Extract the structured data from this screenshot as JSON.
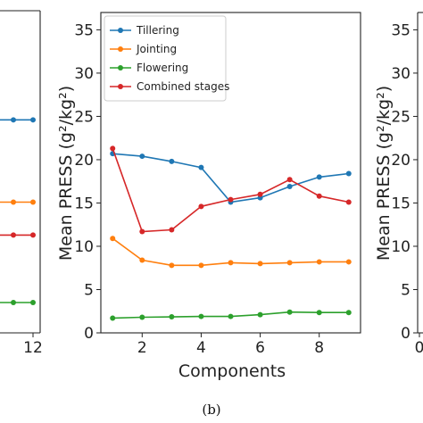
{
  "caption": "(b)",
  "colors": {
    "tillering": "#1f77b4",
    "jointing": "#ff7f0e",
    "flowering": "#2ca02c",
    "combined": "#d62728"
  },
  "chart_data": [
    {
      "panel": "left-partial",
      "type": "line",
      "xlabel": "",
      "ylabel": "",
      "x_ticks": [
        12
      ],
      "series": [
        {
          "name": "",
          "color": "#1f77b4",
          "x": [
            10,
            11,
            12
          ],
          "y": [
            24.6,
            24.6,
            24.6
          ]
        },
        {
          "name": "",
          "color": "#ff7f0e",
          "x": [
            10,
            11,
            12
          ],
          "y": [
            15.1,
            15.1,
            15.1
          ]
        },
        {
          "name": "",
          "color": "#d62728",
          "x": [
            10,
            11,
            12
          ],
          "y": [
            11.3,
            11.3,
            11.3
          ]
        },
        {
          "name": "",
          "color": "#2ca02c",
          "x": [
            10,
            11,
            12
          ],
          "y": [
            3.5,
            3.5,
            3.5
          ]
        }
      ]
    },
    {
      "panel": "b",
      "type": "line",
      "xlabel": "Components",
      "ylabel": "Mean PRESS (g²/kg²)",
      "xlim": [
        0.6,
        9.4
      ],
      "ylim": [
        0,
        37
      ],
      "x_ticks": [
        2,
        4,
        6,
        8
      ],
      "y_ticks": [
        0,
        5,
        10,
        15,
        20,
        25,
        30,
        35
      ],
      "grid": false,
      "legend_position": "top-left",
      "series": [
        {
          "name": "Tillering",
          "color": "#1f77b4",
          "x": [
            1,
            2,
            3,
            4,
            5,
            6,
            7,
            8,
            9
          ],
          "y": [
            20.7,
            20.4,
            19.8,
            19.1,
            15.1,
            15.6,
            16.9,
            18.0,
            18.4
          ]
        },
        {
          "name": "Jointing",
          "color": "#ff7f0e",
          "x": [
            1,
            2,
            3,
            4,
            5,
            6,
            7,
            8,
            9
          ],
          "y": [
            10.9,
            8.4,
            7.8,
            7.8,
            8.1,
            8.0,
            8.1,
            8.2,
            8.2
          ]
        },
        {
          "name": "Flowering",
          "color": "#2ca02c",
          "x": [
            1,
            2,
            3,
            4,
            5,
            6,
            7,
            8,
            9
          ],
          "y": [
            1.7,
            1.8,
            1.85,
            1.9,
            1.9,
            2.1,
            2.4,
            2.35,
            2.35
          ]
        },
        {
          "name": "Combined stages",
          "color": "#d62728",
          "x": [
            1,
            2,
            3,
            4,
            5,
            6,
            7,
            8,
            9
          ],
          "y": [
            21.3,
            11.7,
            11.9,
            14.6,
            15.4,
            16.0,
            17.7,
            15.8,
            15.1
          ]
        }
      ]
    },
    {
      "panel": "right-partial",
      "type": "line",
      "ylabel": "Mean PRESS (g²/kg²)",
      "ylim": [
        0,
        37
      ],
      "y_ticks": [
        0,
        5,
        10,
        15,
        20,
        25,
        30,
        35
      ],
      "x_ticks": [
        0
      ],
      "series": []
    }
  ]
}
